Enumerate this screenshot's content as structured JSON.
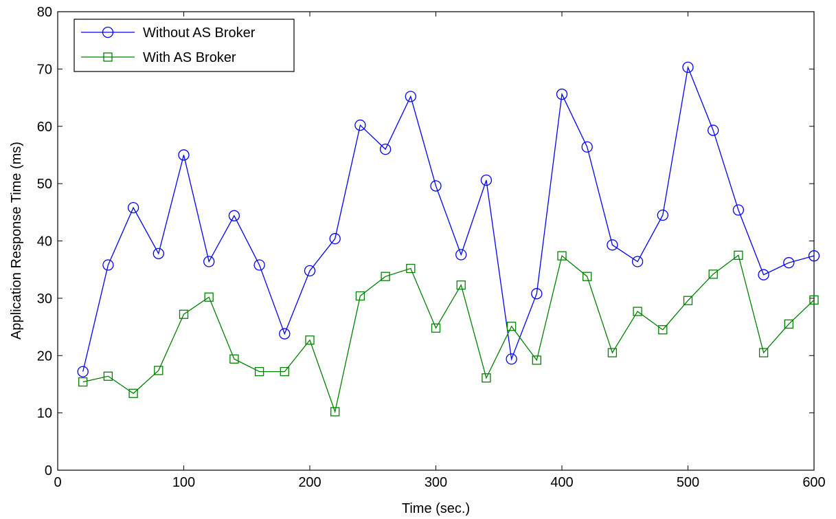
{
  "chart_data": {
    "type": "line",
    "title": "",
    "xlabel": "Time (sec.)",
    "ylabel": "Application Response Time (ms)",
    "xlim": [
      0,
      600
    ],
    "ylim": [
      0,
      80
    ],
    "xticks": [
      0,
      100,
      200,
      300,
      400,
      500,
      600
    ],
    "yticks": [
      0,
      10,
      20,
      30,
      40,
      50,
      60,
      70,
      80
    ],
    "grid": false,
    "legend_position": "top-left",
    "x": [
      20,
      40,
      60,
      80,
      100,
      120,
      140,
      160,
      180,
      200,
      220,
      240,
      260,
      280,
      300,
      320,
      340,
      360,
      380,
      400,
      420,
      440,
      460,
      480,
      500,
      520,
      540,
      560,
      580,
      600
    ],
    "series": [
      {
        "name": "Without AS Broker",
        "color": "#0000ff",
        "marker": "circle",
        "values": [
          17.2,
          35.8,
          45.8,
          37.8,
          55.0,
          36.4,
          44.4,
          35.8,
          23.8,
          34.8,
          40.4,
          60.2,
          56.0,
          65.2,
          49.6,
          37.6,
          50.6,
          19.4,
          30.8,
          65.6,
          56.4,
          39.3,
          36.4,
          44.5,
          70.3,
          59.3,
          45.4,
          34.1,
          36.2,
          37.4
        ]
      },
      {
        "name": "With AS Broker",
        "color": "#008000",
        "marker": "square",
        "values": [
          15.4,
          16.4,
          13.4,
          17.4,
          27.2,
          30.2,
          19.4,
          17.2,
          17.2,
          22.7,
          10.2,
          30.4,
          33.8,
          35.2,
          24.8,
          32.3,
          16.1,
          25.1,
          19.2,
          37.4,
          33.8,
          20.5,
          27.7,
          24.5,
          29.6,
          34.2,
          37.5,
          20.5,
          25.5,
          29.7
        ]
      }
    ]
  }
}
